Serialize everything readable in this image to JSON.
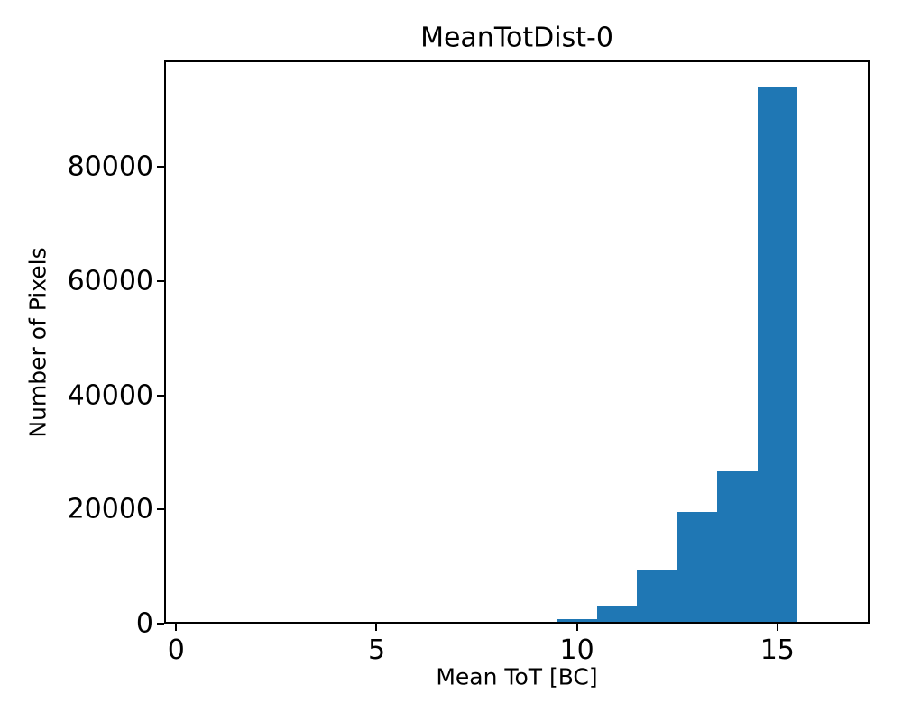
{
  "figure": {
    "background_color": "#ffffff",
    "text_color": "#000000"
  },
  "chart_data": {
    "type": "bar",
    "subtype": "histogram",
    "title": "MeanTotDist-0",
    "xlabel": "Mean ToT [BC]",
    "ylabel": "Number of Pixels",
    "bar_color": "#1f77b4",
    "axis_color": "#000000",
    "grid": false,
    "legend": null,
    "xlim": [
      -0.3,
      17.3
    ],
    "ylim": [
      0,
      98700
    ],
    "xticks": {
      "values": [
        0,
        5,
        10,
        15
      ],
      "labels": [
        "0",
        "5",
        "10",
        "15"
      ]
    },
    "yticks": {
      "values": [
        0,
        20000,
        40000,
        60000,
        80000
      ],
      "labels": [
        "0",
        "20000",
        "40000",
        "60000",
        "80000"
      ]
    },
    "bins": [
      {
        "x0": 8.5,
        "x1": 9.5,
        "count": 350
      },
      {
        "x0": 9.5,
        "x1": 10.5,
        "count": 850
      },
      {
        "x0": 10.5,
        "x1": 11.5,
        "count": 3200
      },
      {
        "x0": 11.5,
        "x1": 12.5,
        "count": 9400
      },
      {
        "x0": 12.5,
        "x1": 13.5,
        "count": 19600
      },
      {
        "x0": 13.5,
        "x1": 14.5,
        "count": 26700
      },
      {
        "x0": 14.5,
        "x1": 15.5,
        "count": 94000
      }
    ]
  }
}
